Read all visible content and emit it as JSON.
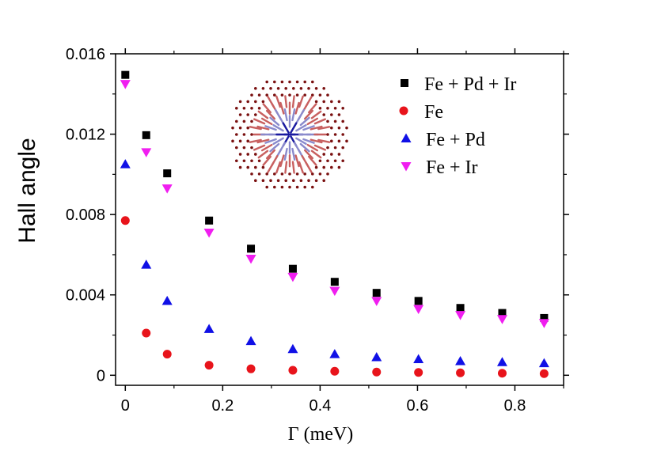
{
  "chart_data": {
    "type": "scatter",
    "title": "",
    "xlabel": "Γ (meV)",
    "ylabel": "Hall angle",
    "xlim": [
      -0.02,
      0.9
    ],
    "ylim": [
      -0.0005,
      0.016
    ],
    "xticks": [
      0,
      0.2,
      0.4,
      0.6,
      0.8
    ],
    "xtick_labels": [
      "0",
      "0.2",
      "0.4",
      "0.6",
      "0.8"
    ],
    "yticks": [
      0,
      0.004,
      0.008,
      0.012,
      0.016
    ],
    "ytick_labels": [
      "0",
      "0.004",
      "0.008",
      "0.012",
      "0.016"
    ],
    "grid": false,
    "legend_position": "top-right",
    "x": [
      0,
      0.043,
      0.086,
      0.172,
      0.258,
      0.344,
      0.43,
      0.516,
      0.602,
      0.688,
      0.774,
      0.86
    ],
    "series": [
      {
        "name": "Fe + Pd + Ir",
        "marker": "square",
        "color": "#000000",
        "values": [
          0.01495,
          0.01195,
          0.01005,
          0.0077,
          0.0063,
          0.0053,
          0.00465,
          0.0041,
          0.0037,
          0.00335,
          0.0031,
          0.00285
        ]
      },
      {
        "name": "Fe",
        "marker": "circle",
        "color": "#e8141b",
        "values": [
          0.0077,
          0.0021,
          0.00105,
          0.0005,
          0.00032,
          0.00025,
          0.0002,
          0.00016,
          0.00014,
          0.00012,
          0.0001,
          8e-05
        ]
      },
      {
        "name": "Fe + Pd",
        "marker": "triangle-up",
        "color": "#1010e6",
        "values": [
          0.0105,
          0.0055,
          0.0037,
          0.0023,
          0.0017,
          0.0013,
          0.00105,
          0.0009,
          0.0008,
          0.0007,
          0.00065,
          0.0006
        ]
      },
      {
        "name": "Fe + Ir",
        "marker": "triangle-down",
        "color": "#f01ef0",
        "values": [
          0.0145,
          0.0111,
          0.0093,
          0.0071,
          0.0058,
          0.0049,
          0.0042,
          0.0037,
          0.0033,
          0.003,
          0.0028,
          0.0026
        ]
      }
    ]
  },
  "inset": {
    "description_name": "skyrmion-lattice-inset",
    "dot_color": "#7a1010"
  }
}
